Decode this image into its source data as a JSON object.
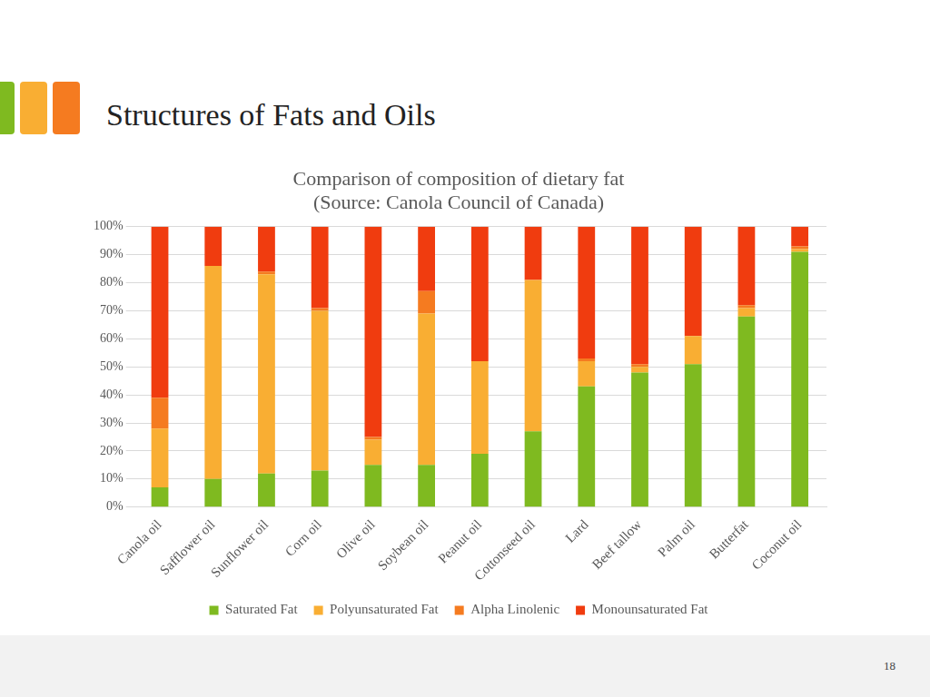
{
  "slide": {
    "title": "Structures of Fats and Oils",
    "page_number": 18
  },
  "chart_data": {
    "type": "bar",
    "title": [
      "Comparison of composition of dietary fat",
      "(Source: Canola Council of Canada)"
    ],
    "stacked": true,
    "grid": true,
    "legend": "bottom",
    "categories": [
      "Canola oil",
      "Safflower oil",
      "Sunflower oil",
      "Corn oil",
      "Olive oil",
      "Soybean oil",
      "Peanut oil",
      "Cottonseed oil",
      "Lard",
      "Beef tallow",
      "Palm oil",
      "Butterfat",
      "Coconut oil"
    ],
    "series": [
      {
        "name": "Saturated Fat",
        "color": "#7fba20",
        "values": [
          7,
          10,
          12,
          13,
          15,
          15,
          19,
          27,
          43,
          48,
          51,
          68,
          91
        ]
      },
      {
        "name": "Polyunsaturated Fat",
        "color": "#f9ae33",
        "values": [
          21,
          76,
          71,
          57,
          9,
          54,
          33,
          54,
          9,
          2,
          10,
          3,
          1
        ]
      },
      {
        "name": "Alpha Linolenic",
        "color": "#f57b20",
        "values": [
          11,
          0,
          1,
          1,
          1,
          8,
          0,
          0,
          1,
          1,
          0,
          1,
          1
        ]
      },
      {
        "name": "Monounsaturated Fat",
        "color": "#f03c0f",
        "values": [
          61,
          14,
          16,
          29,
          75,
          23,
          48,
          19,
          47,
          49,
          39,
          28,
          7
        ]
      }
    ],
    "ylim": [
      0,
      100
    ],
    "yticks": [
      {
        "value": 0,
        "label": "0%"
      },
      {
        "value": 10,
        "label": "10%"
      },
      {
        "value": 20,
        "label": "20%"
      },
      {
        "value": 30,
        "label": "30%"
      },
      {
        "value": 40,
        "label": "40%"
      },
      {
        "value": 50,
        "label": "50%"
      },
      {
        "value": 60,
        "label": "60%"
      },
      {
        "value": 70,
        "label": "70%"
      },
      {
        "value": 80,
        "label": "80%"
      },
      {
        "value": 90,
        "label": "90%"
      },
      {
        "value": 100,
        "label": "100%"
      }
    ]
  }
}
